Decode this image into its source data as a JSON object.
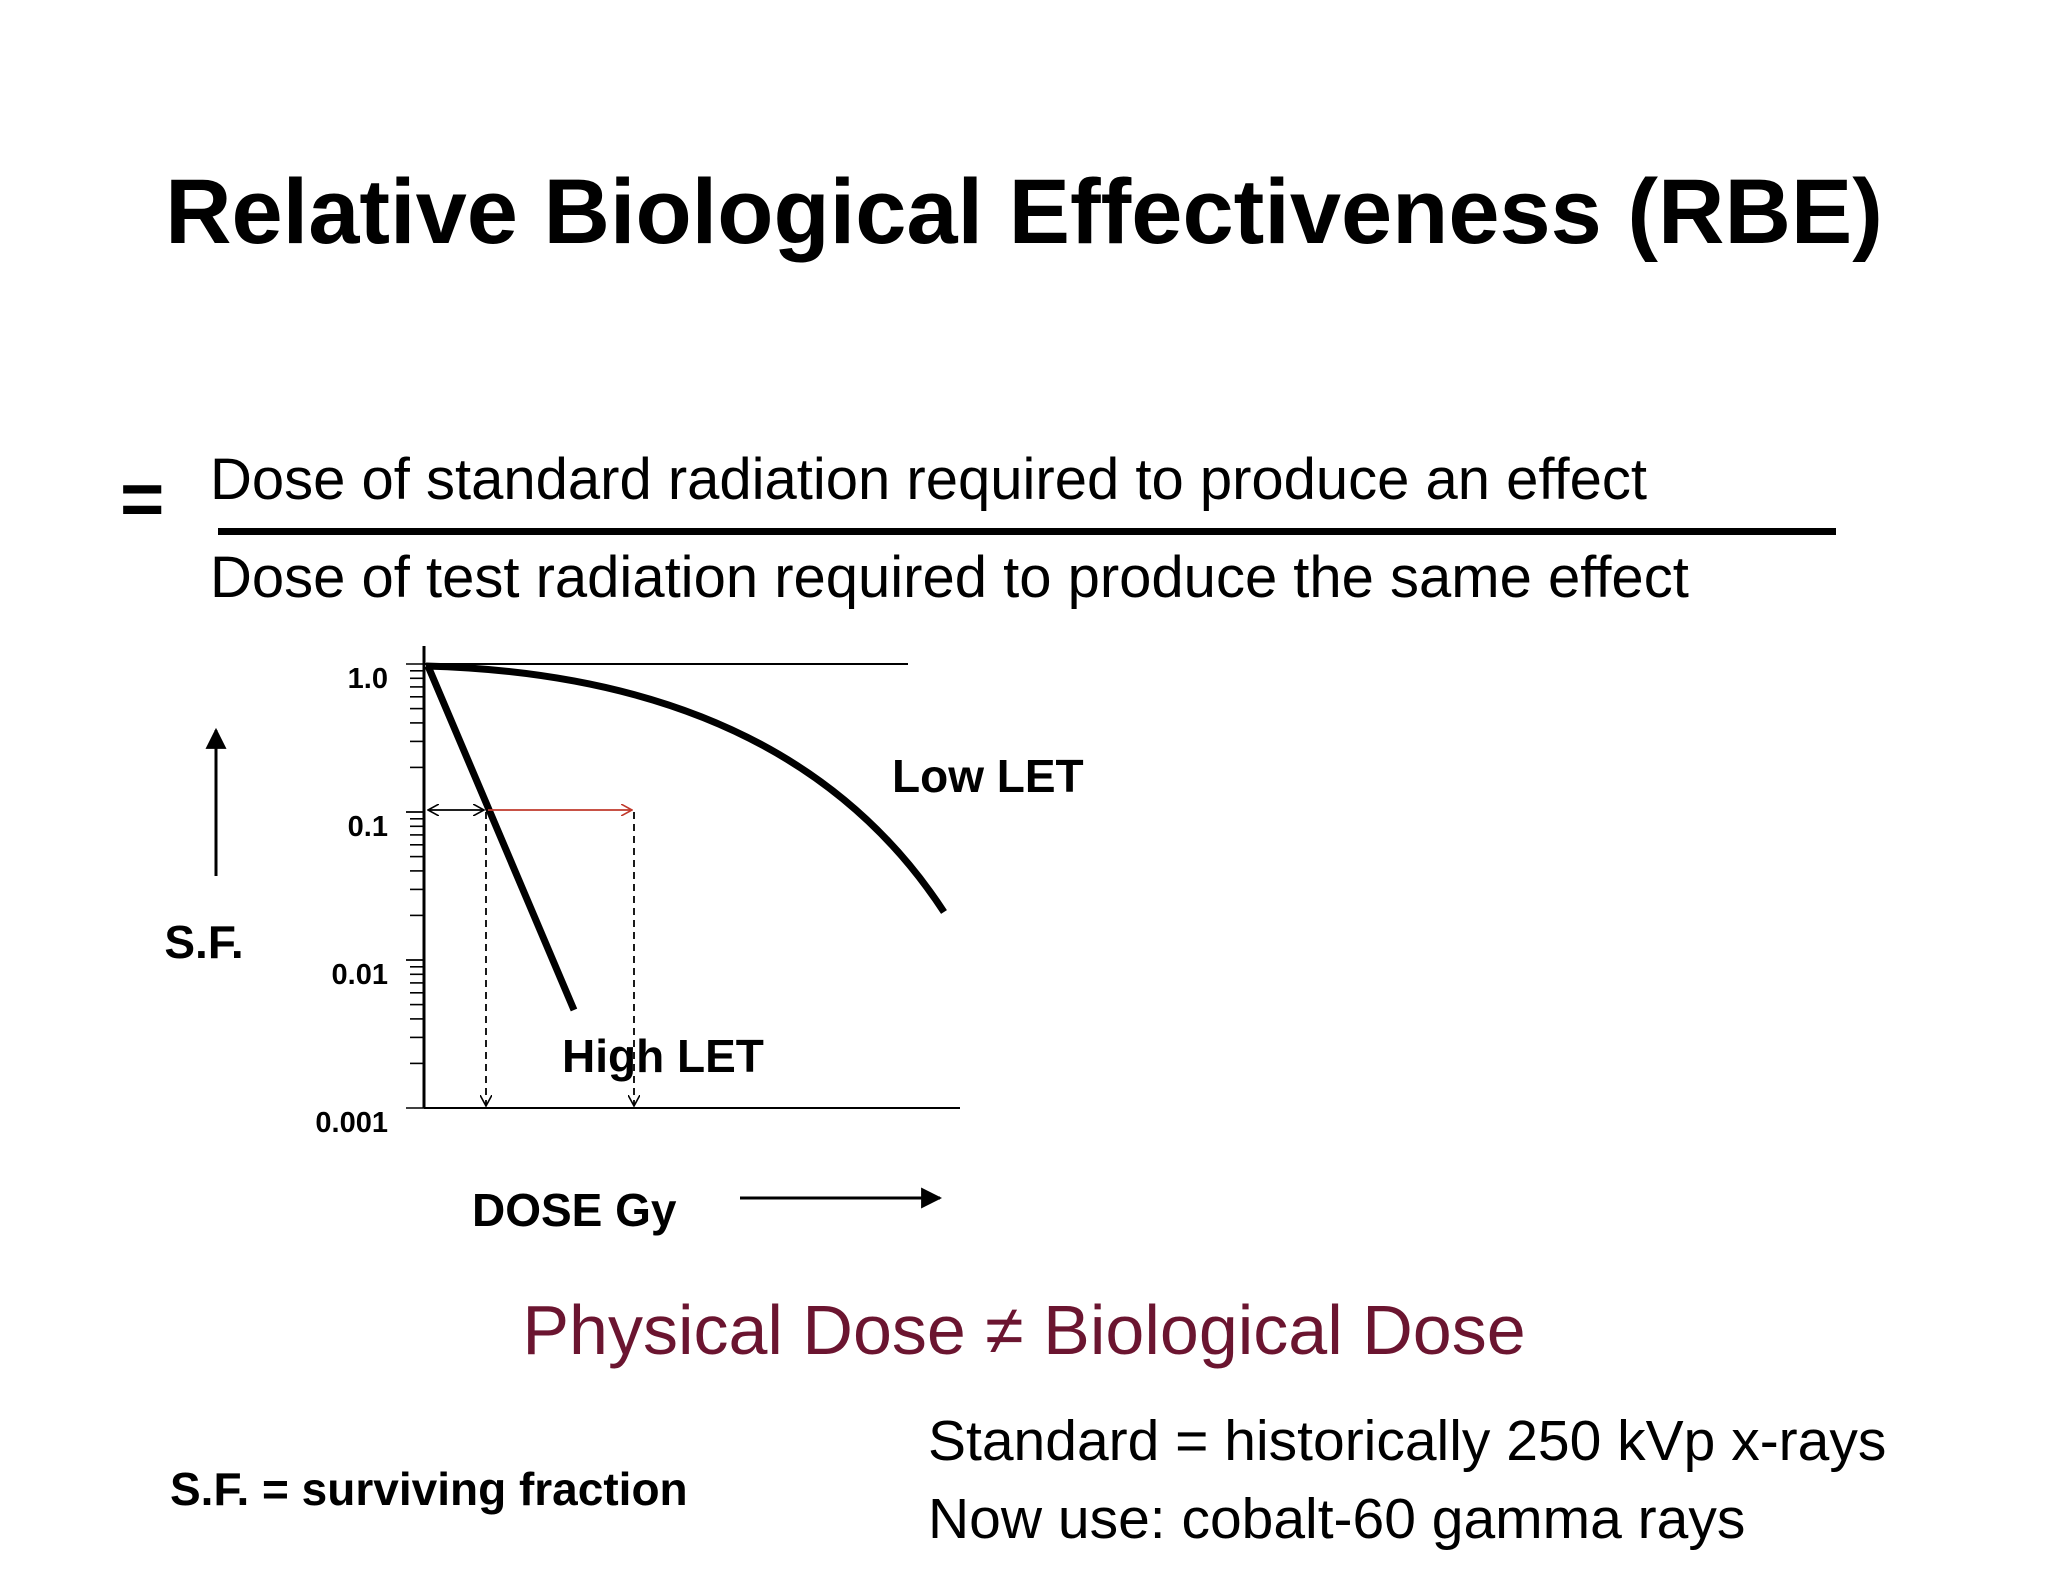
{
  "title": "Relative Biological Effectiveness (RBE)",
  "formula": {
    "equals": "=",
    "numerator": "Dose of standard radiation required to produce an effect",
    "denominator": "Dose of test radiation required to produce the same effect"
  },
  "chart": {
    "y_axis_label": "S.F.",
    "x_axis_label": "DOSE Gy",
    "y_ticks": [
      "1.0",
      "0.1",
      "0.01",
      "0.001"
    ],
    "y_scale": "log",
    "curves": [
      {
        "name": "Low LET",
        "style": "shouldered curve"
      },
      {
        "name": "High LET",
        "style": "straight line"
      }
    ],
    "accent_color": "#c0392b"
  },
  "statement": {
    "left": "Physical Dose",
    "symbol": "≠",
    "right": "Biological Dose",
    "color": "#6b1530"
  },
  "notes": {
    "sf_definition": "S.F. = surviving fraction",
    "standard_line1": "Standard = historically 250 kVp x-rays",
    "standard_line2": "Now use: cobalt-60 gamma rays"
  }
}
